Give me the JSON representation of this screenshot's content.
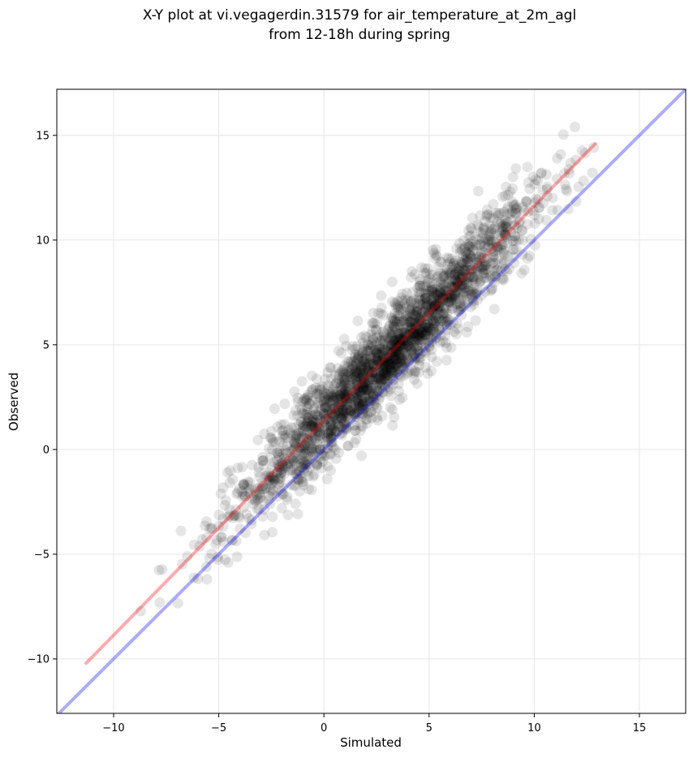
{
  "chart_data": {
    "type": "scatter",
    "title_lines": [
      "X-Y plot at vi.vegagerdin.31579 for air_temperature_at_2m_agl",
      "from 12-18h during spring"
    ],
    "xlabel": "Simulated",
    "ylabel": "Observed",
    "xlim": [
      -12.7,
      17.2
    ],
    "ylim": [
      -12.6,
      17.2
    ],
    "xticks": [
      -10,
      -5,
      0,
      5,
      10,
      15
    ],
    "yticks": [
      -10,
      -5,
      0,
      5,
      10,
      15
    ],
    "tick_labels_x": [
      "−10",
      "−5",
      "0",
      "5",
      "10",
      "15"
    ],
    "tick_labels_y": [
      "−10",
      "−5",
      "0",
      "5",
      "10",
      "15"
    ],
    "grid": true,
    "point_color": "#000000",
    "point_alpha": 0.1,
    "identity_line": {
      "from": [
        -12.7,
        -12.7
      ],
      "to": [
        17.2,
        17.2
      ],
      "color": "#0000ff",
      "alpha": 0.33
    },
    "regression_line": {
      "from": [
        -11.3,
        -10.2
      ],
      "to": [
        12.9,
        14.6
      ],
      "color": "#ff0000",
      "alpha": 0.33
    },
    "point_generation": {
      "count": 2300,
      "x_mean": 3.0,
      "x_sd": 3.6,
      "slope": 1.025,
      "intercept": 1.35,
      "noise_sd": 1.05,
      "x_range": [
        -11.4,
        13.0
      ]
    }
  }
}
